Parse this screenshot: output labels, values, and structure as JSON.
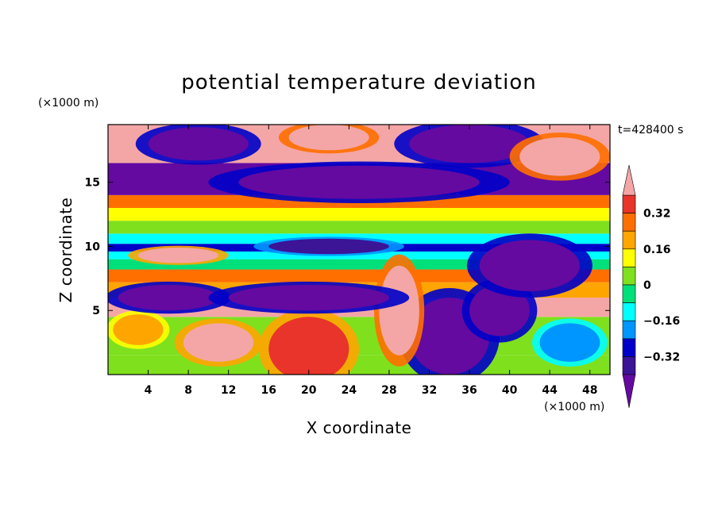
{
  "chart_data": {
    "type": "heatmap",
    "title": "potential temperature deviation",
    "time_label": "t=428400 s",
    "xlabel": "X coordinate",
    "ylabel": "Z coordinate",
    "x_unit": "(×1000 m)",
    "y_unit": "(×1000 m)",
    "xlim": [
      0,
      50
    ],
    "ylim": [
      0,
      19.5
    ],
    "x_ticks": [
      "4",
      "8",
      "12",
      "16",
      "20",
      "24",
      "28",
      "32",
      "36",
      "40",
      "44",
      "48"
    ],
    "x_tick_values": [
      4,
      8,
      12,
      16,
      20,
      24,
      28,
      32,
      36,
      40,
      44,
      48
    ],
    "y_ticks": [
      "5",
      "10",
      "15"
    ],
    "y_tick_values": [
      5,
      10,
      15
    ],
    "colorbar": {
      "tick_labels": [
        "0.32",
        "0.16",
        "0",
        "−0.16",
        "−0.32"
      ],
      "tick_values": [
        0.32,
        0.16,
        0,
        -0.16,
        -0.32
      ],
      "levels": [
        {
          "lo": 0.4,
          "color": "#f4a6a6"
        },
        {
          "lo": 0.32,
          "color": "#e8342a"
        },
        {
          "lo": 0.24,
          "color": "#ff6f00"
        },
        {
          "lo": 0.16,
          "color": "#ffa500"
        },
        {
          "lo": 0.08,
          "color": "#ffff00"
        },
        {
          "lo": 0.0,
          "color": "#7fe01e"
        },
        {
          "lo": -0.08,
          "color": "#00e07a"
        },
        {
          "lo": -0.16,
          "color": "#00ffff"
        },
        {
          "lo": -0.24,
          "color": "#0096ff"
        },
        {
          "lo": -0.32,
          "color": "#0000c8"
        },
        {
          "lo": -0.4,
          "color": "#3c1496"
        },
        {
          "lo": -99,
          "color": "#640aa0"
        }
      ]
    },
    "layers": [
      {
        "z0": 0.0,
        "z1": 1.5,
        "value": 0.02
      },
      {
        "z0": 1.5,
        "z1": 4.5,
        "value": 0.06
      },
      {
        "z0": 4.5,
        "z1": 6.0,
        "value": 0.42
      },
      {
        "z0": 6.0,
        "z1": 7.2,
        "value": 0.2
      },
      {
        "z0": 7.2,
        "z1": 8.2,
        "value": 0.3
      },
      {
        "z0": 8.2,
        "z1": 9.0,
        "value": -0.05
      },
      {
        "z0": 9.0,
        "z1": 9.6,
        "value": -0.12
      },
      {
        "z0": 9.6,
        "z1": 10.2,
        "value": -0.3
      },
      {
        "z0": 10.2,
        "z1": 11.0,
        "value": -0.1
      },
      {
        "z0": 11.0,
        "z1": 12.0,
        "value": 0.05
      },
      {
        "z0": 12.0,
        "z1": 13.0,
        "value": 0.1
      },
      {
        "z0": 13.0,
        "z1": 14.0,
        "value": 0.25
      },
      {
        "z0": 14.0,
        "z1": 16.5,
        "value": -0.45
      },
      {
        "z0": 16.5,
        "z1": 19.5,
        "value": 0.45
      }
    ],
    "blobs": [
      {
        "x": 20,
        "z": 2.0,
        "rx": 4.0,
        "rz": 2.5,
        "value": 0.34
      },
      {
        "x": 11,
        "z": 2.5,
        "rx": 3.5,
        "rz": 1.5,
        "value": 0.42
      },
      {
        "x": 3,
        "z": 3.5,
        "rx": 2.5,
        "rz": 1.2,
        "value": 0.2
      },
      {
        "x": 34,
        "z": 3.0,
        "rx": 4.0,
        "rz": 3.0,
        "value": -0.5
      },
      {
        "x": 39,
        "z": 5.0,
        "rx": 3.0,
        "rz": 2.0,
        "value": -0.5
      },
      {
        "x": 46,
        "z": 2.5,
        "rx": 3.0,
        "rz": 1.5,
        "value": -0.2
      },
      {
        "x": 29,
        "z": 5.0,
        "rx": 2.0,
        "rz": 3.5,
        "value": 0.45
      },
      {
        "x": 6,
        "z": 6.0,
        "rx": 5.0,
        "rz": 1.0,
        "value": -0.5
      },
      {
        "x": 20,
        "z": 6.0,
        "rx": 8.0,
        "rz": 1.0,
        "value": -0.5
      },
      {
        "x": 42,
        "z": 8.5,
        "rx": 5.0,
        "rz": 2.0,
        "value": -0.48
      },
      {
        "x": 22,
        "z": 10.0,
        "rx": 6.0,
        "rz": 0.6,
        "value": -0.36
      },
      {
        "x": 7,
        "z": 9.3,
        "rx": 4.0,
        "rz": 0.6,
        "value": 0.42
      },
      {
        "x": 25,
        "z": 15.0,
        "rx": 12.0,
        "rz": 1.3,
        "value": -0.5
      },
      {
        "x": 9,
        "z": 18.0,
        "rx": 5.0,
        "rz": 1.3,
        "value": -0.5
      },
      {
        "x": 36,
        "z": 18.0,
        "rx": 6.0,
        "rz": 1.5,
        "value": -0.5
      },
      {
        "x": 22,
        "z": 18.5,
        "rx": 4.0,
        "rz": 1.0,
        "value": 0.45
      },
      {
        "x": 45,
        "z": 17.0,
        "rx": 4.0,
        "rz": 1.5,
        "value": 0.45
      }
    ]
  }
}
